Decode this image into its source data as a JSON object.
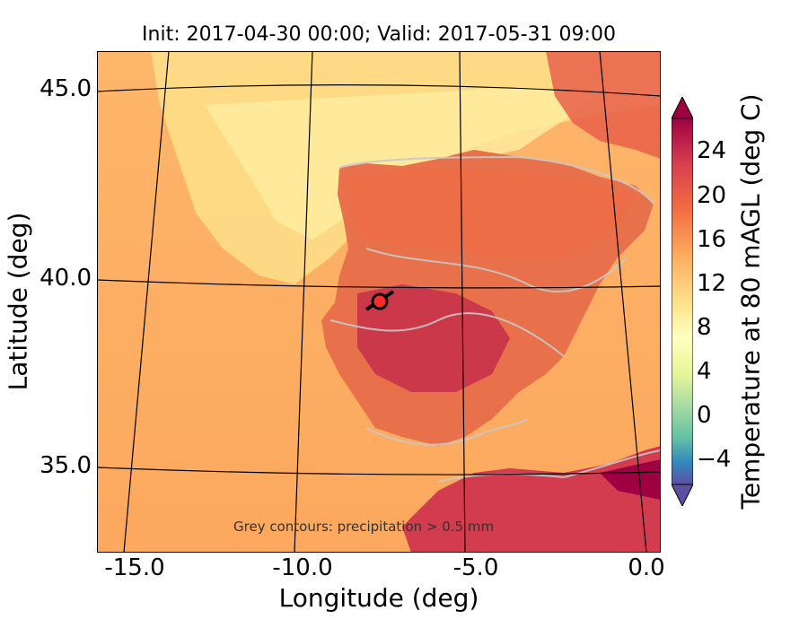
{
  "title": "Init: 2017-04-30 00:00; Valid: 2017-05-31 09:00",
  "map": {
    "xlabel": "Longitude (deg)",
    "ylabel": "Latitude (deg)",
    "lon_ticks": [
      "-15.0",
      "-10.0",
      "-5.0",
      "0.0"
    ],
    "lat_ticks": [
      "45.0",
      "40.0",
      "35.0"
    ],
    "annotation": "Grey contours: precipitation > 0.5 mm",
    "marker_color": "#ff2a2a",
    "ocean_color": "#fdbf6f",
    "land_hot_color": "#c8324a"
  },
  "colorbar": {
    "label": "Temperature at 80 mAGL (deg C)",
    "ticks": [
      "24",
      "20",
      "16",
      "12",
      "8",
      "4",
      "0",
      "−4"
    ],
    "range": [
      -6,
      28
    ],
    "extend": "both"
  }
}
